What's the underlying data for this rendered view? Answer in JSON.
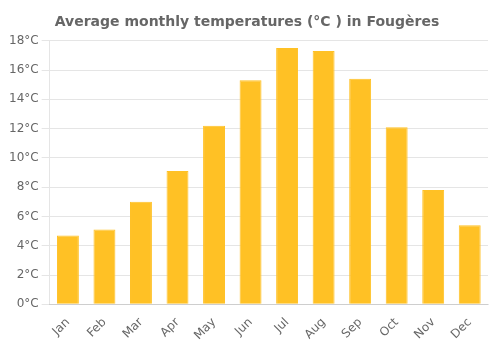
{
  "chart_data": {
    "type": "bar",
    "title": "Average monthly temperatures (°C ) in Fougères",
    "categories": [
      "Jan",
      "Feb",
      "Mar",
      "Apr",
      "May",
      "Jun",
      "Jul",
      "Aug",
      "Sep",
      "Oct",
      "Nov",
      "Dec"
    ],
    "values": [
      4.7,
      5.1,
      7.0,
      9.1,
      12.2,
      15.3,
      17.5,
      17.3,
      15.4,
      12.1,
      7.8,
      5.4
    ],
    "color": "#FFC125",
    "ylim": [
      0,
      18
    ],
    "yticks": [
      {
        "value": 0,
        "label": "0°C"
      },
      {
        "value": 2,
        "label": "2°C"
      },
      {
        "value": 4,
        "label": "4°C"
      },
      {
        "value": 6,
        "label": "6°C"
      },
      {
        "value": 8,
        "label": "8°C"
      },
      {
        "value": 10,
        "label": "10°C"
      },
      {
        "value": 12,
        "label": "12°C"
      },
      {
        "value": 14,
        "label": "14°C"
      },
      {
        "value": 16,
        "label": "16°C"
      },
      {
        "value": 18,
        "label": "18°C"
      }
    ],
    "grid": true
  }
}
